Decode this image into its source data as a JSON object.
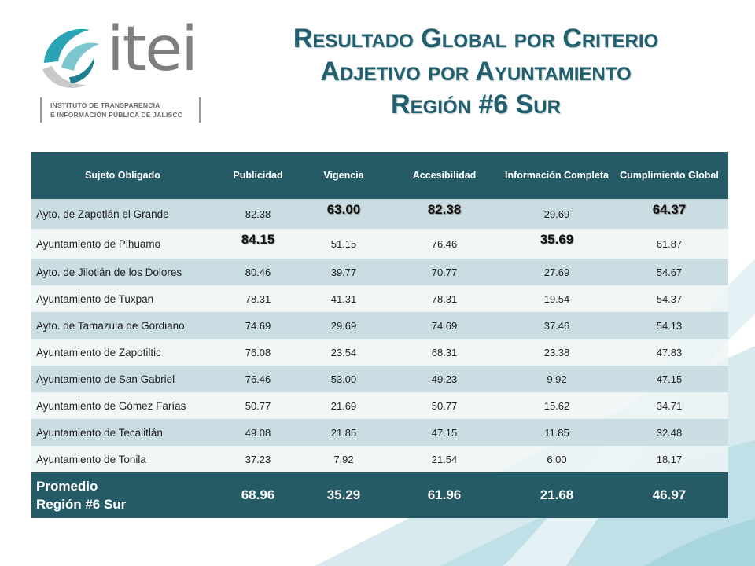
{
  "logo": {
    "wordmark": "itei",
    "subtitle_line1": "INSTITUTO DE TRANSPARENCIA",
    "subtitle_line2": "E INFORMACIÓN PÚBLICA DE JALISCO"
  },
  "title": {
    "line1": "Resultado Global por Criterio",
    "line2": "Adjetivo por Ayuntamiento",
    "line3": "Región #6  Sur"
  },
  "table": {
    "headers": [
      "Sujeto Obligado",
      "Publicidad",
      "Vigencia",
      "Accesibilidad",
      "Información Completa",
      "Cumplimiento Global"
    ],
    "rows": [
      {
        "name": "Ayto. de Zapotlán el Grande",
        "values": [
          "82.38",
          "63.00",
          "82.38",
          "29.69",
          "64.37"
        ]
      },
      {
        "name": "Ayuntamiento de Pihuamo",
        "values": [
          "84.15",
          "51.15",
          "76.46",
          "35.69",
          "61.87"
        ]
      },
      {
        "name": "Ayto. de Jilotlán de los Dolores",
        "values": [
          "80.46",
          "39.77",
          "70.77",
          "27.69",
          "54.67"
        ]
      },
      {
        "name": "Ayuntamiento de Tuxpan",
        "values": [
          "78.31",
          "41.31",
          "78.31",
          "19.54",
          "54.37"
        ]
      },
      {
        "name": "Ayto. de Tamazula de Gordiano",
        "values": [
          "74.69",
          "29.69",
          "74.69",
          "37.46",
          "54.13"
        ]
      },
      {
        "name": "Ayuntamiento de Zapotiltic",
        "values": [
          "76.08",
          "23.54",
          "68.31",
          "23.38",
          "47.83"
        ]
      },
      {
        "name": "Ayuntamiento de San Gabriel",
        "values": [
          "76.46",
          "53.00",
          "49.23",
          "9.92",
          "47.15"
        ]
      },
      {
        "name": "Ayuntamiento de Gómez Farías",
        "values": [
          "50.77",
          "21.69",
          "50.77",
          "15.62",
          "34.71"
        ]
      },
      {
        "name": "Ayuntamiento de Tecalitlán",
        "values": [
          "49.08",
          "21.85",
          "47.15",
          "11.85",
          "32.48"
        ]
      },
      {
        "name": "Ayuntamiento de Tonila",
        "values": [
          "37.23",
          "7.92",
          "21.54",
          "6.00",
          "18.17"
        ]
      }
    ],
    "average": {
      "label_line1": "Promedio",
      "label_line2": "Región #6 Sur",
      "values": [
        "68.96",
        "35.29",
        "61.96",
        "21.68",
        "46.97"
      ]
    }
  },
  "colors": {
    "header_bg": "#255a67",
    "title": "#215f6e",
    "row_alt": "#c9dde2"
  }
}
